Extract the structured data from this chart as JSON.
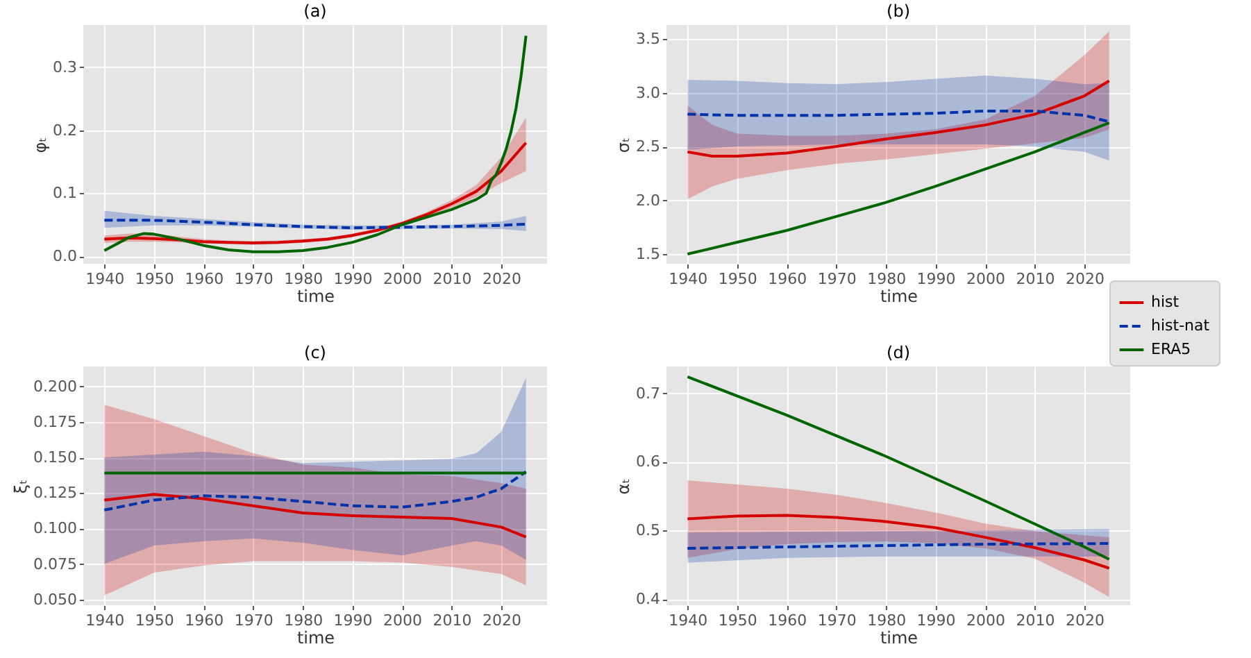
{
  "chart_data": [
    {
      "type": "line",
      "title": "(a)",
      "xlabel": "time",
      "ylabel": "φₜ",
      "xlim": [
        1935.75,
        2029.25
      ],
      "xticks": [
        1940,
        1950,
        1960,
        1970,
        1980,
        1990,
        2000,
        2010,
        2020
      ],
      "ylim": [
        -0.012,
        0.367
      ],
      "yticks": [
        {
          "value": 0,
          "label": "0.0"
        },
        {
          "value": 0.1,
          "label": "0.1"
        },
        {
          "value": 0.2,
          "label": "0.2"
        },
        {
          "value": 0.3,
          "label": "0.3"
        }
      ],
      "grid": true,
      "legend": "right",
      "series": [
        {
          "name": "hist",
          "color": "#d40000",
          "line_style": "solid",
          "x": [
            1940,
            1945,
            1950,
            1955,
            1960,
            1965,
            1970,
            1975,
            1980,
            1985,
            1990,
            1995,
            2000,
            2005,
            2010,
            2015,
            2020,
            2025
          ],
          "values": [
            0.027,
            0.029,
            0.028,
            0.026,
            0.023,
            0.022,
            0.021,
            0.022,
            0.024,
            0.027,
            0.033,
            0.041,
            0.052,
            0.066,
            0.083,
            0.103,
            0.135,
            0.18
          ],
          "lower": [
            0.021,
            0.023,
            0.023,
            0.022,
            0.02,
            0.019,
            0.018,
            0.019,
            0.021,
            0.024,
            0.03,
            0.038,
            0.049,
            0.062,
            0.077,
            0.094,
            0.116,
            0.135
          ],
          "upper": [
            0.033,
            0.036,
            0.036,
            0.031,
            0.027,
            0.025,
            0.024,
            0.025,
            0.027,
            0.03,
            0.036,
            0.044,
            0.055,
            0.07,
            0.089,
            0.113,
            0.157,
            0.22
          ]
        },
        {
          "name": "hist-nat",
          "color": "#0033aa",
          "line_style": "dashed",
          "x": [
            1940,
            1950,
            1960,
            1970,
            1980,
            1990,
            2000,
            2010,
            2020,
            2025
          ],
          "values": [
            0.057,
            0.057,
            0.054,
            0.05,
            0.047,
            0.045,
            0.046,
            0.047,
            0.049,
            0.051
          ],
          "lower": [
            0.045,
            0.049,
            0.049,
            0.047,
            0.044,
            0.042,
            0.043,
            0.044,
            0.043,
            0.04
          ],
          "upper": [
            0.072,
            0.064,
            0.059,
            0.054,
            0.05,
            0.049,
            0.049,
            0.05,
            0.055,
            0.064
          ]
        },
        {
          "name": "ERA5",
          "color": "#006400",
          "line_style": "solid",
          "x": [
            1940,
            1945,
            1948,
            1950,
            1955,
            1960,
            1965,
            1970,
            1975,
            1980,
            1985,
            1990,
            1995,
            2000,
            2005,
            2010,
            2015,
            2016,
            2017,
            2018,
            2019,
            2020,
            2021,
            2022,
            2023,
            2024,
            2025
          ],
          "values": [
            0.009,
            0.03,
            0.036,
            0.035,
            0.027,
            0.017,
            0.01,
            0.007,
            0.007,
            0.009,
            0.014,
            0.022,
            0.034,
            0.05,
            0.062,
            0.074,
            0.09,
            0.095,
            0.1,
            0.12,
            0.13,
            0.148,
            0.17,
            0.198,
            0.235,
            0.285,
            0.35
          ]
        }
      ]
    },
    {
      "type": "line",
      "title": "(b)",
      "xlabel": "time",
      "ylabel": "σₜ",
      "xlim": [
        1935.75,
        2029.25
      ],
      "xticks": [
        1940,
        1950,
        1960,
        1970,
        1980,
        1990,
        2000,
        2010,
        2020
      ],
      "ylim": [
        1.41,
        3.63
      ],
      "yticks": [
        {
          "value": 1.5,
          "label": "1.5"
        },
        {
          "value": 2,
          "label": "2.0"
        },
        {
          "value": 2.5,
          "label": "2.5"
        },
        {
          "value": 3,
          "label": "3.0"
        },
        {
          "value": 3.5,
          "label": "3.5"
        }
      ],
      "grid": true,
      "series": [
        {
          "color": "#d40000",
          "line_style": "solid",
          "x": [
            1940,
            1945,
            1950,
            1960,
            1970,
            1980,
            1990,
            2000,
            2010,
            2020,
            2025
          ],
          "values": [
            2.45,
            2.41,
            2.41,
            2.44,
            2.5,
            2.57,
            2.63,
            2.7,
            2.8,
            2.97,
            3.11
          ],
          "lower": [
            2.01,
            2.13,
            2.2,
            2.28,
            2.34,
            2.38,
            2.43,
            2.48,
            2.53,
            2.58,
            2.66
          ],
          "upper": [
            2.88,
            2.7,
            2.62,
            2.6,
            2.6,
            2.62,
            2.66,
            2.75,
            2.97,
            3.35,
            3.57
          ]
        },
        {
          "color": "#0033aa",
          "line_style": "dashed",
          "x": [
            1940,
            1950,
            1960,
            1970,
            1980,
            1990,
            2000,
            2010,
            2020,
            2025
          ],
          "values": [
            2.8,
            2.79,
            2.79,
            2.79,
            2.8,
            2.81,
            2.83,
            2.83,
            2.79,
            2.73
          ],
          "lower": [
            2.47,
            2.5,
            2.51,
            2.52,
            2.52,
            2.52,
            2.52,
            2.5,
            2.45,
            2.37
          ],
          "upper": [
            3.12,
            3.11,
            3.09,
            3.08,
            3.1,
            3.13,
            3.16,
            3.13,
            3.08,
            3.09
          ]
        },
        {
          "color": "#006400",
          "line_style": "solid",
          "x": [
            1940,
            1950,
            1960,
            1970,
            1980,
            1990,
            2000,
            2010,
            2020,
            2025
          ],
          "values": [
            1.5,
            1.61,
            1.72,
            1.85,
            1.98,
            2.13,
            2.29,
            2.45,
            2.63,
            2.72
          ]
        }
      ]
    },
    {
      "type": "line",
      "title": "(c)",
      "xlabel": "time",
      "ylabel": "ξₜ",
      "xlim": [
        1935.75,
        2029.25
      ],
      "xticks": [
        1940,
        1950,
        1960,
        1970,
        1980,
        1990,
        2000,
        2010,
        2020
      ],
      "ylim": [
        0.046,
        0.214
      ],
      "yticks": [
        {
          "value": 0.05,
          "label": "0.050"
        },
        {
          "value": 0.075,
          "label": "0.075"
        },
        {
          "value": 0.1,
          "label": "0.100"
        },
        {
          "value": 0.125,
          "label": "0.125"
        },
        {
          "value": 0.15,
          "label": "0.150"
        },
        {
          "value": 0.175,
          "label": "0.175"
        },
        {
          "value": 0.2,
          "label": "0.200"
        }
      ],
      "grid": true,
      "series": [
        {
          "color": "#d40000",
          "line_style": "solid",
          "x": [
            1940,
            1950,
            1960,
            1970,
            1980,
            1990,
            2000,
            2010,
            2020,
            2025
          ],
          "values": [
            0.12,
            0.124,
            0.121,
            0.116,
            0.111,
            0.109,
            0.108,
            0.107,
            0.101,
            0.094
          ],
          "lower": [
            0.053,
            0.069,
            0.074,
            0.077,
            0.077,
            0.077,
            0.076,
            0.073,
            0.068,
            0.06
          ],
          "upper": [
            0.187,
            0.177,
            0.165,
            0.153,
            0.145,
            0.143,
            0.138,
            0.137,
            0.132,
            0.128
          ]
        },
        {
          "color": "#0033aa",
          "line_style": "dashed",
          "x": [
            1940,
            1950,
            1960,
            1970,
            1980,
            1990,
            2000,
            2010,
            2015,
            2020,
            2025
          ],
          "values": [
            0.113,
            0.12,
            0.123,
            0.122,
            0.119,
            0.116,
            0.115,
            0.119,
            0.122,
            0.128,
            0.14
          ],
          "lower": [
            0.075,
            0.088,
            0.091,
            0.093,
            0.09,
            0.085,
            0.081,
            0.088,
            0.091,
            0.088,
            0.078
          ],
          "upper": [
            0.15,
            0.152,
            0.154,
            0.151,
            0.146,
            0.147,
            0.148,
            0.149,
            0.153,
            0.168,
            0.206
          ]
        },
        {
          "color": "#006400",
          "line_style": "solid",
          "x": [
            1940,
            2025
          ],
          "values": [
            0.139,
            0.139
          ]
        }
      ]
    },
    {
      "type": "line",
      "title": "(d)",
      "xlabel": "time",
      "ylabel": "αₜ",
      "xlim": [
        1935.75,
        2029.25
      ],
      "xticks": [
        1940,
        1950,
        1960,
        1970,
        1980,
        1990,
        2000,
        2010,
        2020
      ],
      "ylim": [
        0.391,
        0.739
      ],
      "yticks": [
        {
          "value": 0.4,
          "label": "0.4"
        },
        {
          "value": 0.5,
          "label": "0.5"
        },
        {
          "value": 0.6,
          "label": "0.6"
        },
        {
          "value": 0.7,
          "label": "0.7"
        }
      ],
      "grid": true,
      "series": [
        {
          "color": "#d40000",
          "line_style": "solid",
          "x": [
            1940,
            1950,
            1960,
            1970,
            1980,
            1990,
            2000,
            2010,
            2020,
            2025
          ],
          "values": [
            0.517,
            0.521,
            0.522,
            0.519,
            0.513,
            0.504,
            0.49,
            0.475,
            0.457,
            0.445
          ],
          "lower": [
            0.46,
            0.473,
            0.48,
            0.483,
            0.484,
            0.481,
            0.474,
            0.459,
            0.424,
            0.403
          ],
          "upper": [
            0.573,
            0.567,
            0.561,
            0.552,
            0.54,
            0.526,
            0.51,
            0.499,
            0.493,
            0.49
          ]
        },
        {
          "color": "#0033aa",
          "line_style": "dashed",
          "x": [
            1940,
            1960,
            1980,
            2000,
            2025
          ],
          "values": [
            0.474,
            0.476,
            0.478,
            0.48,
            0.481
          ],
          "lower": [
            0.453,
            0.46,
            0.462,
            0.462,
            0.462
          ],
          "upper": [
            0.497,
            0.498,
            0.499,
            0.5,
            0.502
          ]
        },
        {
          "color": "#006400",
          "line_style": "solid",
          "x": [
            1940,
            1960,
            1980,
            2000,
            2020,
            2025
          ],
          "values": [
            0.724,
            0.668,
            0.608,
            0.543,
            0.476,
            0.458
          ]
        }
      ]
    }
  ]
}
